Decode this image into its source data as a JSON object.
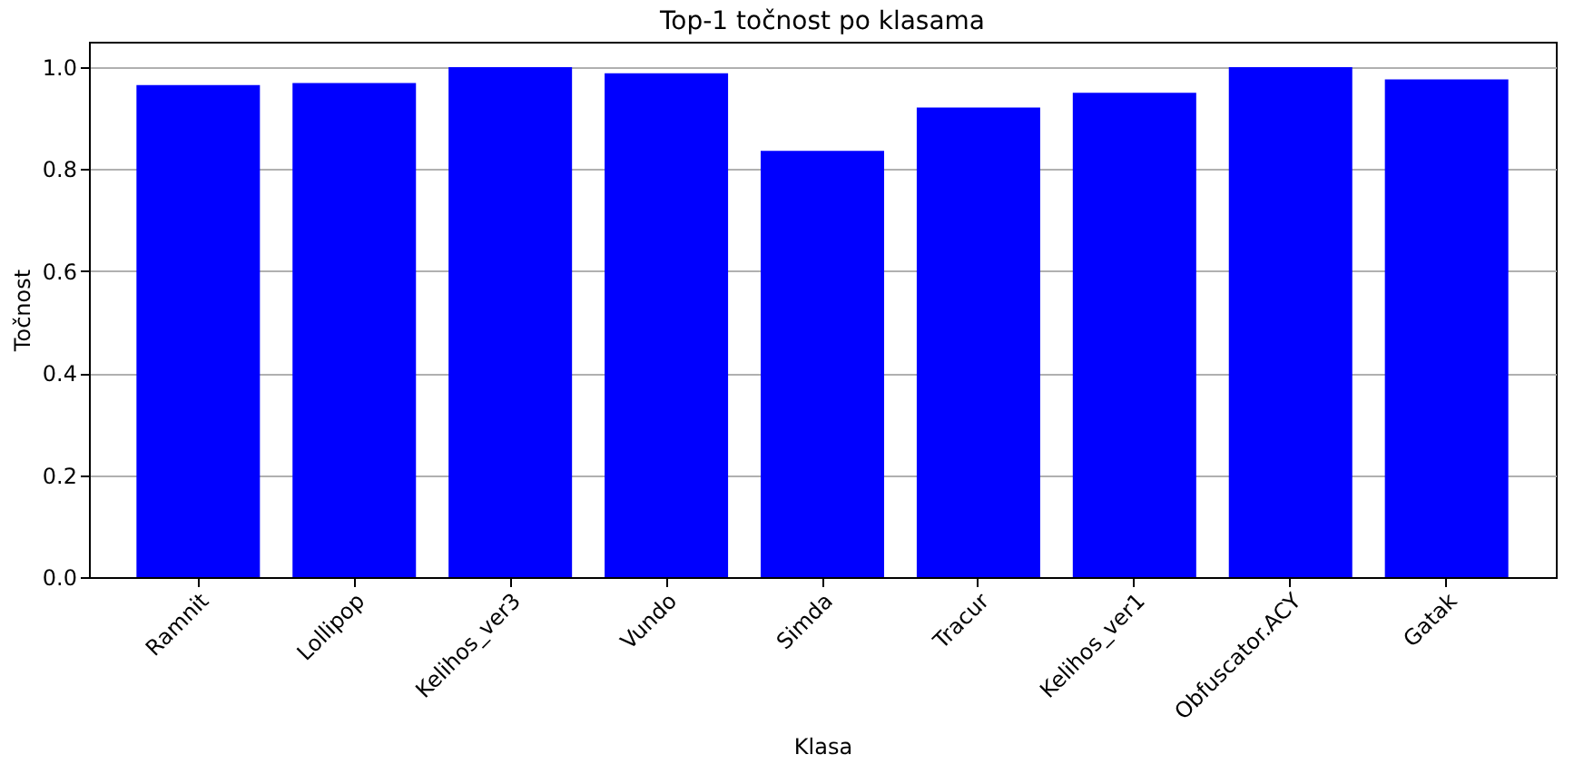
{
  "chart_data": {
    "type": "bar",
    "title": "Top-1 točnost po klasama",
    "xlabel": "Klasa",
    "ylabel": "Točnost",
    "categories": [
      "Ramnit",
      "Lollipop",
      "Kelihos_ver3",
      "Vundo",
      "Simda",
      "Tracur",
      "Kelihos_ver1",
      "Obfuscator.ACY",
      "Gatak"
    ],
    "values": [
      0.965,
      0.969,
      1.0,
      0.988,
      0.836,
      0.921,
      0.95,
      1.0,
      0.976
    ],
    "color": "#0000ff",
    "ylim": [
      0,
      1.05
    ],
    "yticks": [
      {
        "value": 0,
        "label": "0.0"
      },
      {
        "value": 0.2,
        "label": "0.2"
      },
      {
        "value": 0.4,
        "label": "0.4"
      },
      {
        "value": 0.6,
        "label": "0.6"
      },
      {
        "value": 0.8,
        "label": "0.8"
      },
      {
        "value": 1,
        "label": "1.0"
      }
    ],
    "grid": "y"
  }
}
